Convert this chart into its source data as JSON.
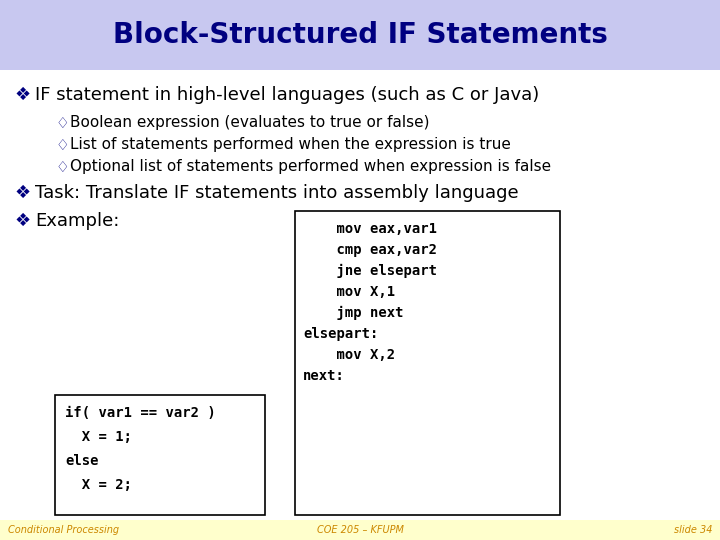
{
  "title": "Block-Structured IF Statements",
  "title_bg": "#c8c8f0",
  "title_color": "#000080",
  "slide_bg": "#ffffff",
  "footer_bg": "#ffffcc",
  "bullet1": "IF statement in high-level languages (such as C or Java)",
  "sub_bullets": [
    "Boolean expression (evaluates to true or false)",
    "List of statements performed when the expression is true",
    "Optional list of statements performed when expression is false"
  ],
  "bullet2": "Task: Translate IF statements into assembly language",
  "bullet3": "Example:",
  "code_left": "if( var1 == var2 )\n  X = 1;\nelse\n  X = 2;",
  "code_right": "    mov eax,var1\n    cmp eax,var2\n    jne elsepart\n    mov X,1\n    jmp next\nelsepart:\n    mov X,2\nnext:",
  "footer_left": "Conditional Processing",
  "footer_center": "COE 205 – KFUPM",
  "footer_right": "slide 34",
  "bullet_color": "#000080",
  "text_color": "#000000",
  "sub_bullet_color": "#000080",
  "code_box_bg": "#ffffff",
  "code_box_border": "#000000",
  "footer_text_color": "#cc8800"
}
